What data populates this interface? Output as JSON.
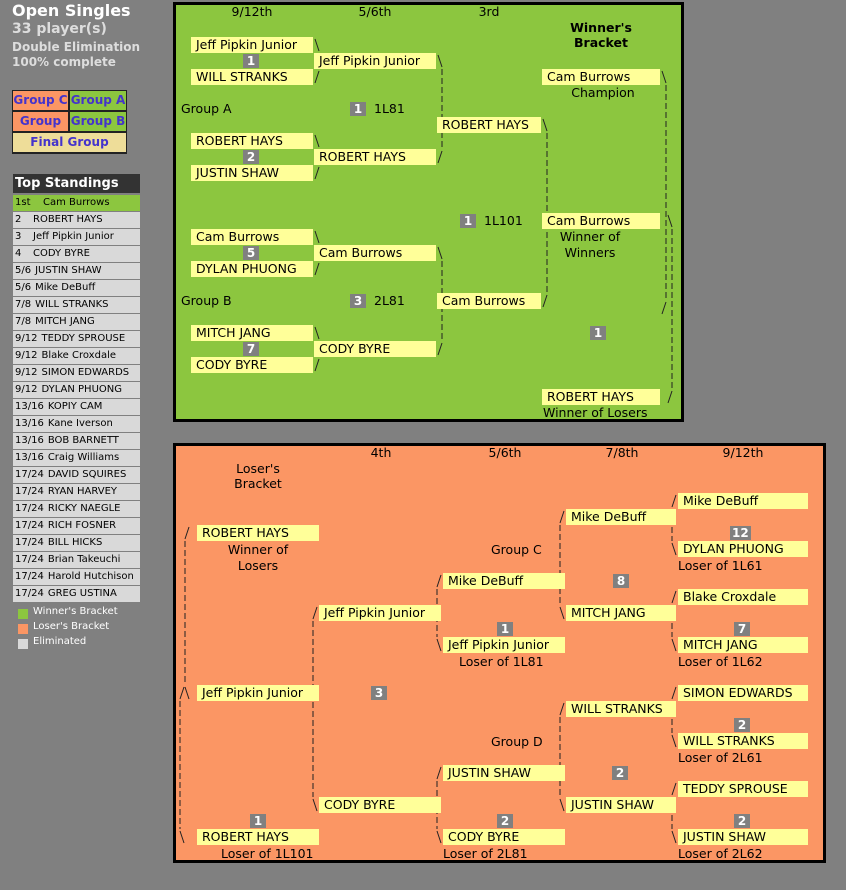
{
  "header": {
    "title": "Open Singles",
    "players": "33 player(s)",
    "format": "Double Elimination",
    "progress": "100% complete"
  },
  "groups": [
    "Group C",
    "Group A",
    "Group D",
    "Group B",
    "Final Group"
  ],
  "standings": {
    "title": "Top Standings",
    "rows": [
      {
        "place": "1st",
        "name": "Cam Burrows"
      },
      {
        "place": "2",
        "name": "ROBERT HAYS"
      },
      {
        "place": "3",
        "name": "Jeff Pipkin Junior"
      },
      {
        "place": "4",
        "name": "CODY BYRE"
      },
      {
        "place": "5/6",
        "name": "JUSTIN SHAW"
      },
      {
        "place": "5/6",
        "name": "Mike DeBuff"
      },
      {
        "place": "7/8",
        "name": "WILL STRANKS"
      },
      {
        "place": "7/8",
        "name": "MITCH JANG"
      },
      {
        "place": "9/12",
        "name": "TEDDY SPROUSE"
      },
      {
        "place": "9/12",
        "name": "Blake Croxdale"
      },
      {
        "place": "9/12",
        "name": "SIMON EDWARDS"
      },
      {
        "place": "9/12",
        "name": "DYLAN PHUONG"
      },
      {
        "place": "13/16",
        "name": "KOPIY CAM"
      },
      {
        "place": "13/16",
        "name": "Kane Iverson"
      },
      {
        "place": "13/16",
        "name": "BOB BARNETT"
      },
      {
        "place": "13/16",
        "name": "Craig Williams"
      },
      {
        "place": "17/24",
        "name": "DAVID SQUIRES"
      },
      {
        "place": "17/24",
        "name": "RYAN HARVEY"
      },
      {
        "place": "17/24",
        "name": "RICKY NAEGLE"
      },
      {
        "place": "17/24",
        "name": "RICH FOSNER"
      },
      {
        "place": "17/24",
        "name": "BILL HICKS"
      },
      {
        "place": "17/24",
        "name": "Brian Takeuchi"
      },
      {
        "place": "17/24",
        "name": "Harold Hutchison"
      },
      {
        "place": "17/24",
        "name": "GREG USTINA"
      }
    ]
  },
  "legend": [
    "Winner's Bracket",
    "Loser's Bracket",
    "Eliminated"
  ],
  "winners": {
    "title": "Winner's Bracket",
    "rounds": [
      "9/12th",
      "5/6th",
      "3rd"
    ],
    "entries": [
      "Jeff Pipkin Junior",
      "WILL STRANKS",
      "Jeff Pipkin Junior",
      "ROBERT HAYS",
      "JUSTIN SHAW",
      "ROBERT HAYS",
      "ROBERT HAYS",
      "Cam Burrows",
      "DYLAN PHUONG",
      "Cam Burrows",
      "MITCH JANG",
      "CODY BYRE",
      "CODY BYRE",
      "Cam Burrows",
      "Cam Burrows",
      "Cam Burrows",
      "ROBERT HAYS"
    ],
    "notes": [
      "Group A",
      "Group B",
      "1L81",
      "2L81",
      "1L101",
      "Champion",
      "Winner of",
      "Winners",
      "Winner of Losers"
    ],
    "badges": [
      1,
      2,
      5,
      7,
      1,
      3,
      1,
      1
    ]
  },
  "losers": {
    "title": "Loser's Bracket",
    "rounds": [
      "4th",
      "5/6th",
      "7/8th",
      "9/12th"
    ],
    "entries": [
      "ROBERT HAYS",
      "Jeff Pipkin Junior",
      "ROBERT HAYS",
      "Jeff Pipkin Junior",
      "CODY BYRE",
      "Mike DeBuff",
      "Jeff Pipkin Junior",
      "JUSTIN SHAW",
      "CODY BYRE",
      "Mike DeBuff",
      "MITCH JANG",
      "WILL STRANKS",
      "JUSTIN SHAW",
      "Mike DeBuff",
      "DYLAN PHUONG",
      "Blake Croxdale",
      "MITCH JANG",
      "SIMON EDWARDS",
      "WILL STRANKS",
      "TEDDY SPROUSE",
      "JUSTIN SHAW"
    ],
    "notes": [
      "Winner of",
      "Losers",
      "Loser of 1L101",
      "Loser of 1L81",
      "Loser of 2L81",
      "Group C",
      "Group D",
      "Loser of 1L61",
      "Loser of 1L62",
      "Loser of 2L61",
      "Loser of 2L62"
    ],
    "badges": [
      12,
      8,
      7,
      1,
      3,
      2,
      2,
      1,
      2,
      2
    ]
  }
}
